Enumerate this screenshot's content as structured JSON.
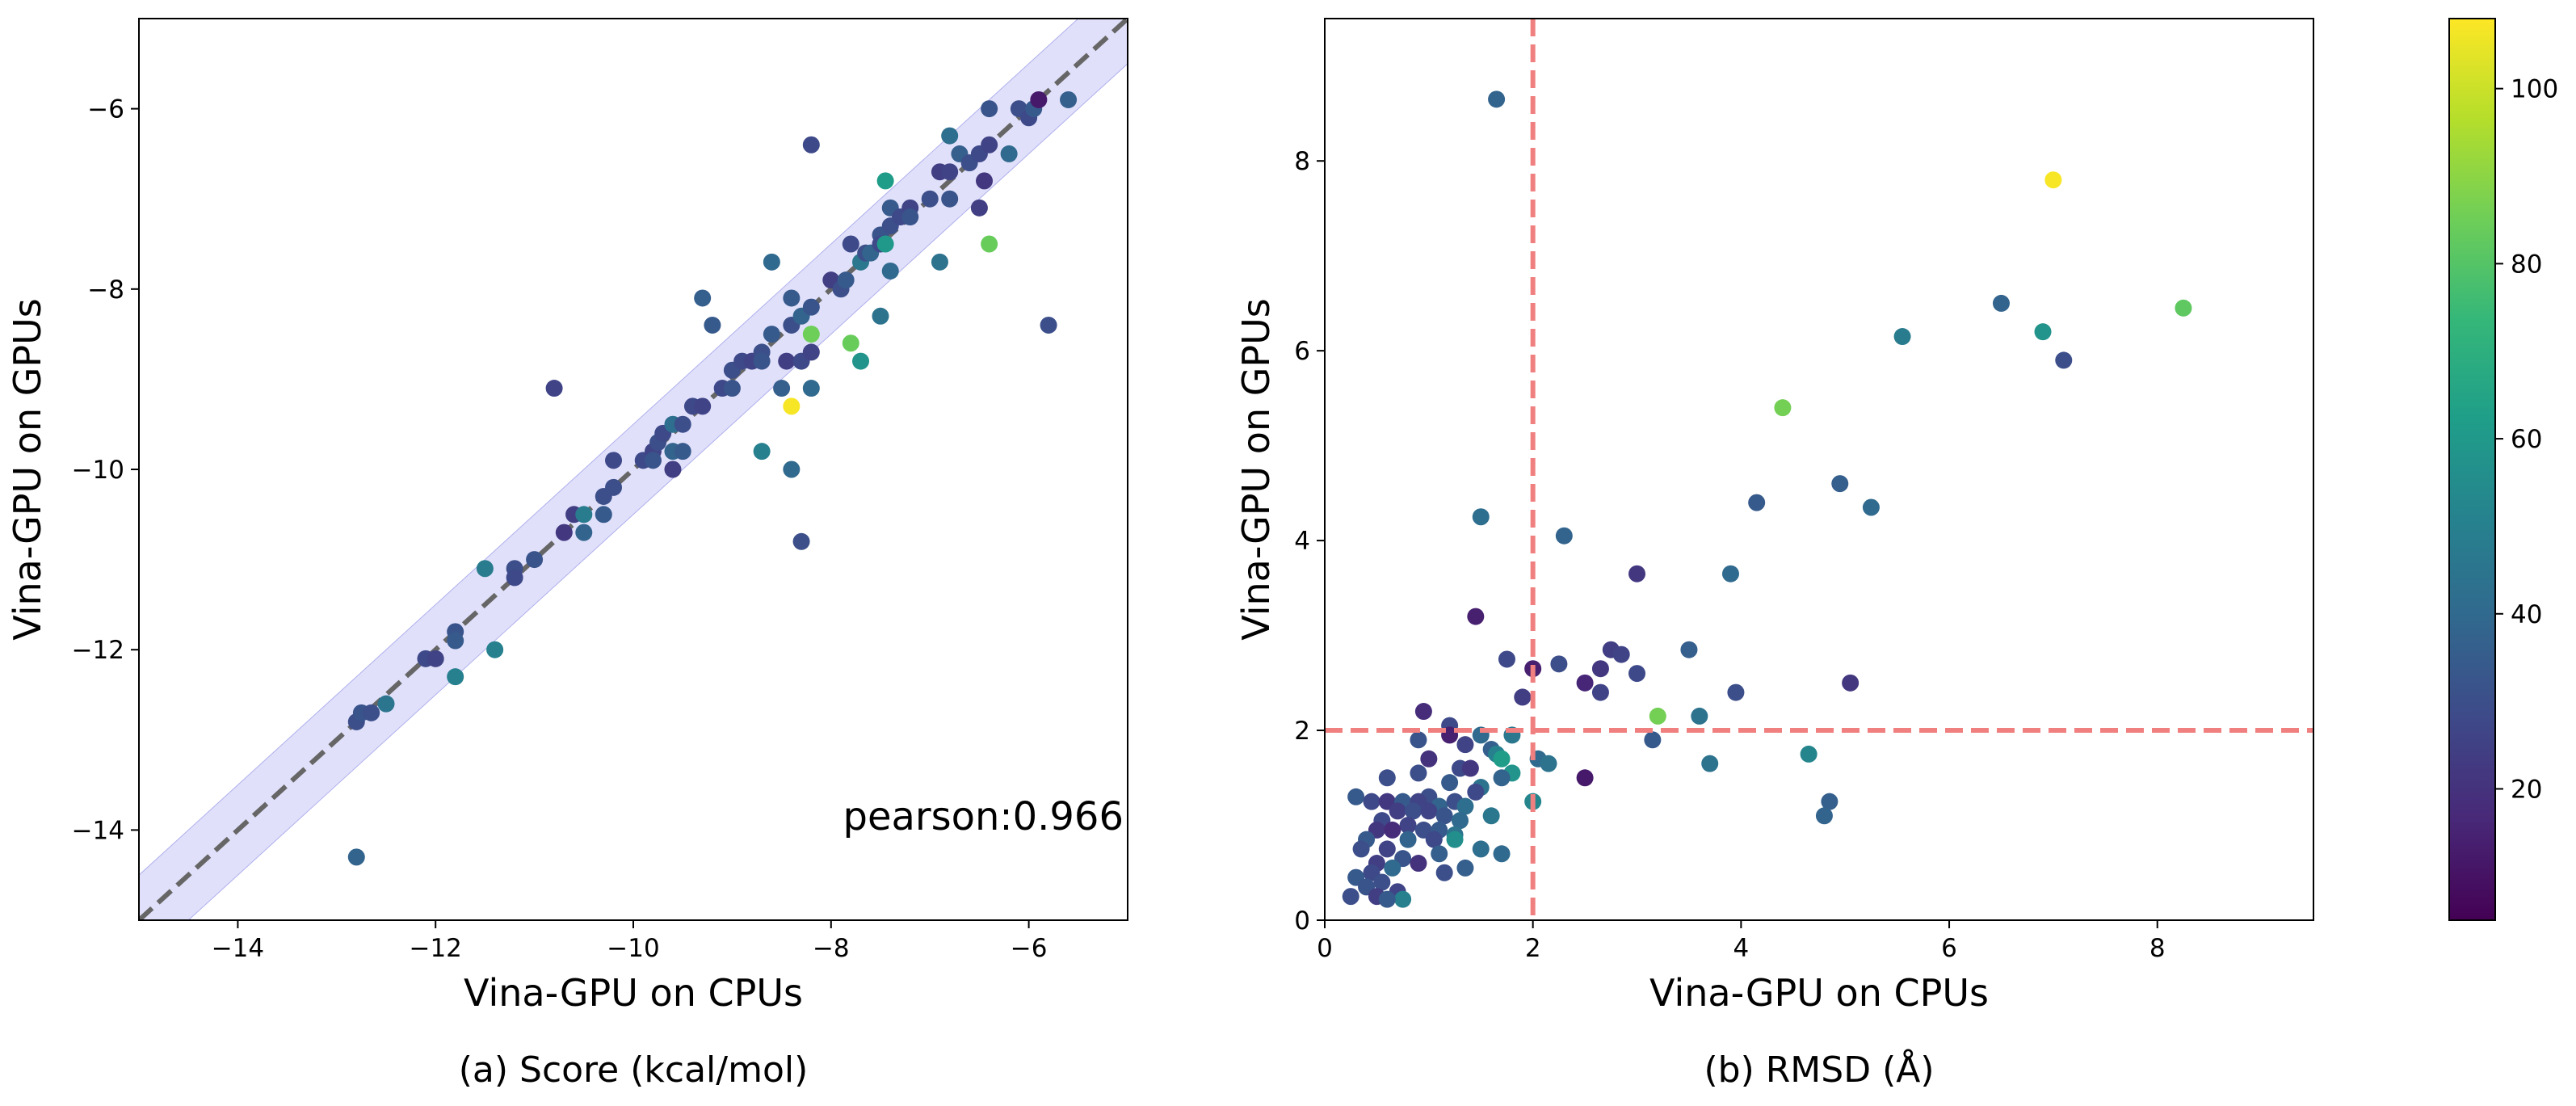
{
  "figure": {
    "caption_a": "(a) Score (kcal/mol)",
    "caption_b": "(b) RMSD (Å)"
  },
  "chart_data": [
    {
      "type": "scatter",
      "panel": "a",
      "title": "",
      "xlabel": "Vina-GPU on CPUs",
      "ylabel": "Vina-GPU on GPUs",
      "xlim": [
        -15,
        -5
      ],
      "ylim": [
        -15,
        -5
      ],
      "xticks": [
        -14,
        -12,
        -10,
        -8,
        -6
      ],
      "yticks": [
        -14,
        -12,
        -10,
        -8,
        -6
      ],
      "xtick_labels": [
        "−14",
        "−12",
        "−10",
        "−8",
        "−6"
      ],
      "ytick_labels": [
        "−14",
        "−12",
        "−10",
        "−8",
        "−6"
      ],
      "annotation": "pearson:0.966",
      "reference_line": {
        "style": "dashed",
        "color": "#666666",
        "slope": 1,
        "intercept": 0
      },
      "band": {
        "color": "#c6c6f5",
        "half_width": 0.5
      },
      "points": [
        {
          "x": -12.8,
          "y": -14.3,
          "c": 38
        },
        {
          "x": -12.8,
          "y": -12.8,
          "c": 30
        },
        {
          "x": -12.75,
          "y": -12.7,
          "c": 32
        },
        {
          "x": -12.65,
          "y": -12.7,
          "c": 30
        },
        {
          "x": -12.5,
          "y": -12.6,
          "c": 45
        },
        {
          "x": -12.1,
          "y": -12.1,
          "c": 28
        },
        {
          "x": -12.0,
          "y": -12.1,
          "c": 26
        },
        {
          "x": -11.8,
          "y": -11.8,
          "c": 32
        },
        {
          "x": -11.8,
          "y": -11.9,
          "c": 34
        },
        {
          "x": -11.8,
          "y": -12.3,
          "c": 50
        },
        {
          "x": -11.5,
          "y": -11.1,
          "c": 48
        },
        {
          "x": -11.4,
          "y": -12.0,
          "c": 50
        },
        {
          "x": -11.2,
          "y": -11.1,
          "c": 30
        },
        {
          "x": -11.2,
          "y": -11.2,
          "c": 28
        },
        {
          "x": -11.0,
          "y": -11.0,
          "c": 32
        },
        {
          "x": -10.8,
          "y": -9.1,
          "c": 26
        },
        {
          "x": -10.7,
          "y": -10.7,
          "c": 22
        },
        {
          "x": -10.6,
          "y": -10.5,
          "c": 24
        },
        {
          "x": -10.5,
          "y": -10.7,
          "c": 38
        },
        {
          "x": -10.5,
          "y": -10.5,
          "c": 48
        },
        {
          "x": -10.3,
          "y": -10.3,
          "c": 30
        },
        {
          "x": -10.3,
          "y": -10.5,
          "c": 34
        },
        {
          "x": -10.2,
          "y": -10.2,
          "c": 30
        },
        {
          "x": -10.2,
          "y": -9.9,
          "c": 28
        },
        {
          "x": -9.9,
          "y": -9.9,
          "c": 28
        },
        {
          "x": -9.8,
          "y": -9.8,
          "c": 26
        },
        {
          "x": -9.8,
          "y": -9.9,
          "c": 32
        },
        {
          "x": -9.75,
          "y": -9.7,
          "c": 30
        },
        {
          "x": -9.7,
          "y": -9.6,
          "c": 28
        },
        {
          "x": -9.6,
          "y": -9.5,
          "c": 42
        },
        {
          "x": -9.6,
          "y": -9.8,
          "c": 38
        },
        {
          "x": -9.6,
          "y": -10.0,
          "c": 24
        },
        {
          "x": -9.5,
          "y": -9.8,
          "c": 34
        },
        {
          "x": -9.5,
          "y": -9.5,
          "c": 30
        },
        {
          "x": -9.4,
          "y": -9.3,
          "c": 28
        },
        {
          "x": -9.3,
          "y": -9.3,
          "c": 26
        },
        {
          "x": -9.3,
          "y": -8.1,
          "c": 36
        },
        {
          "x": -9.2,
          "y": -8.4,
          "c": 34
        },
        {
          "x": -9.1,
          "y": -9.1,
          "c": 28
        },
        {
          "x": -9.0,
          "y": -8.9,
          "c": 30
        },
        {
          "x": -9.0,
          "y": -9.1,
          "c": 32
        },
        {
          "x": -8.9,
          "y": -8.8,
          "c": 28
        },
        {
          "x": -8.8,
          "y": -8.8,
          "c": 26
        },
        {
          "x": -8.7,
          "y": -9.8,
          "c": 50
        },
        {
          "x": -8.7,
          "y": -8.7,
          "c": 30
        },
        {
          "x": -8.7,
          "y": -8.8,
          "c": 32
        },
        {
          "x": -8.6,
          "y": -7.7,
          "c": 40
        },
        {
          "x": -8.6,
          "y": -8.5,
          "c": 34
        },
        {
          "x": -8.5,
          "y": -9.1,
          "c": 36
        },
        {
          "x": -8.45,
          "y": -8.8,
          "c": 24
        },
        {
          "x": -8.4,
          "y": -8.4,
          "c": 30
        },
        {
          "x": -8.4,
          "y": -8.1,
          "c": 34
        },
        {
          "x": -8.4,
          "y": -10.0,
          "c": 40
        },
        {
          "x": -8.4,
          "y": -9.3,
          "c": 107
        },
        {
          "x": -8.3,
          "y": -10.8,
          "c": 30
        },
        {
          "x": -8.3,
          "y": -8.3,
          "c": 38
        },
        {
          "x": -8.3,
          "y": -8.8,
          "c": 28
        },
        {
          "x": -8.2,
          "y": -8.2,
          "c": 32
        },
        {
          "x": -8.2,
          "y": -8.7,
          "c": 26
        },
        {
          "x": -8.2,
          "y": -8.5,
          "c": 85
        },
        {
          "x": -8.2,
          "y": -9.1,
          "c": 40
        },
        {
          "x": -8.2,
          "y": -6.4,
          "c": 28
        },
        {
          "x": -8.0,
          "y": -7.9,
          "c": 24
        },
        {
          "x": -7.9,
          "y": -8.0,
          "c": 30
        },
        {
          "x": -7.85,
          "y": -7.9,
          "c": 34
        },
        {
          "x": -7.8,
          "y": -7.5,
          "c": 28
        },
        {
          "x": -7.8,
          "y": -8.6,
          "c": 84
        },
        {
          "x": -7.7,
          "y": -8.8,
          "c": 58
        },
        {
          "x": -7.7,
          "y": -7.7,
          "c": 46
        },
        {
          "x": -7.65,
          "y": -7.6,
          "c": 30
        },
        {
          "x": -7.6,
          "y": -7.6,
          "c": 38
        },
        {
          "x": -7.5,
          "y": -7.4,
          "c": 32
        },
        {
          "x": -7.5,
          "y": -8.3,
          "c": 44
        },
        {
          "x": -7.5,
          "y": -7.5,
          "c": 28
        },
        {
          "x": -7.45,
          "y": -7.5,
          "c": 60
        },
        {
          "x": -7.45,
          "y": -6.8,
          "c": 62
        },
        {
          "x": -7.4,
          "y": -7.1,
          "c": 34
        },
        {
          "x": -7.4,
          "y": -7.3,
          "c": 30
        },
        {
          "x": -7.4,
          "y": -7.8,
          "c": 40
        },
        {
          "x": -7.3,
          "y": -7.2,
          "c": 28
        },
        {
          "x": -7.2,
          "y": -7.1,
          "c": 26
        },
        {
          "x": -7.2,
          "y": -7.2,
          "c": 32
        },
        {
          "x": -7.0,
          "y": -7.0,
          "c": 30
        },
        {
          "x": -6.9,
          "y": -6.7,
          "c": 24
        },
        {
          "x": -6.9,
          "y": -7.7,
          "c": 44
        },
        {
          "x": -6.8,
          "y": -6.7,
          "c": 26
        },
        {
          "x": -6.8,
          "y": -6.3,
          "c": 42
        },
        {
          "x": -6.8,
          "y": -7.0,
          "c": 32
        },
        {
          "x": -6.7,
          "y": -6.5,
          "c": 36
        },
        {
          "x": -6.6,
          "y": -6.6,
          "c": 30
        },
        {
          "x": -6.5,
          "y": -6.5,
          "c": 28
        },
        {
          "x": -6.5,
          "y": -7.1,
          "c": 24
        },
        {
          "x": -6.45,
          "y": -6.8,
          "c": 22
        },
        {
          "x": -6.4,
          "y": -6.4,
          "c": 26
        },
        {
          "x": -6.4,
          "y": -7.5,
          "c": 84
        },
        {
          "x": -6.4,
          "y": -6.0,
          "c": 32
        },
        {
          "x": -6.2,
          "y": -6.5,
          "c": 40
        },
        {
          "x": -6.1,
          "y": -6.0,
          "c": 30
        },
        {
          "x": -6.0,
          "y": -6.1,
          "c": 28
        },
        {
          "x": -5.95,
          "y": -6.0,
          "c": 34
        },
        {
          "x": -5.9,
          "y": -5.9,
          "c": 12
        },
        {
          "x": -5.8,
          "y": -8.4,
          "c": 30
        },
        {
          "x": -5.6,
          "y": -5.9,
          "c": 36
        }
      ]
    },
    {
      "type": "scatter",
      "panel": "b",
      "title": "",
      "xlabel": "Vina-GPU on CPUs",
      "ylabel": "Vina-GPU on GPUs",
      "xlim": [
        0,
        9.5
      ],
      "ylim": [
        0,
        9.5
      ],
      "xticks": [
        0,
        2,
        4,
        6,
        8
      ],
      "yticks": [
        0,
        2,
        4,
        6,
        8
      ],
      "xtick_labels": [
        "0",
        "2",
        "4",
        "6",
        "8"
      ],
      "ytick_labels": [
        "0",
        "2",
        "4",
        "6",
        "8"
      ],
      "threshold_lines": {
        "x": 2,
        "y": 2,
        "style": "dashed",
        "color": "#f08080"
      },
      "points": [
        {
          "x": 1.65,
          "y": 8.65,
          "c": 38
        },
        {
          "x": 7.0,
          "y": 7.8,
          "c": 107
        },
        {
          "x": 6.5,
          "y": 6.5,
          "c": 38
        },
        {
          "x": 8.25,
          "y": 6.45,
          "c": 82
        },
        {
          "x": 6.9,
          "y": 6.2,
          "c": 58
        },
        {
          "x": 5.55,
          "y": 6.15,
          "c": 48
        },
        {
          "x": 7.1,
          "y": 5.9,
          "c": 30
        },
        {
          "x": 4.4,
          "y": 5.4,
          "c": 86
        },
        {
          "x": 4.95,
          "y": 4.6,
          "c": 36
        },
        {
          "x": 4.15,
          "y": 4.4,
          "c": 34
        },
        {
          "x": 5.25,
          "y": 4.35,
          "c": 40
        },
        {
          "x": 1.5,
          "y": 4.25,
          "c": 42
        },
        {
          "x": 2.3,
          "y": 4.05,
          "c": 38
        },
        {
          "x": 3.0,
          "y": 3.65,
          "c": 22
        },
        {
          "x": 3.9,
          "y": 3.65,
          "c": 40
        },
        {
          "x": 1.45,
          "y": 3.2,
          "c": 14
        },
        {
          "x": 3.5,
          "y": 2.85,
          "c": 36
        },
        {
          "x": 2.75,
          "y": 2.85,
          "c": 24
        },
        {
          "x": 1.75,
          "y": 2.75,
          "c": 28
        },
        {
          "x": 2.85,
          "y": 2.8,
          "c": 26
        },
        {
          "x": 2.0,
          "y": 2.65,
          "c": 14
        },
        {
          "x": 2.65,
          "y": 2.65,
          "c": 22
        },
        {
          "x": 2.25,
          "y": 2.7,
          "c": 30
        },
        {
          "x": 3.0,
          "y": 2.6,
          "c": 28
        },
        {
          "x": 5.05,
          "y": 2.5,
          "c": 22
        },
        {
          "x": 2.5,
          "y": 2.5,
          "c": 16
        },
        {
          "x": 2.65,
          "y": 2.4,
          "c": 26
        },
        {
          "x": 3.95,
          "y": 2.4,
          "c": 30
        },
        {
          "x": 1.9,
          "y": 2.35,
          "c": 24
        },
        {
          "x": 0.95,
          "y": 2.2,
          "c": 18
        },
        {
          "x": 3.6,
          "y": 2.15,
          "c": 44
        },
        {
          "x": 3.2,
          "y": 2.15,
          "c": 86
        },
        {
          "x": 1.2,
          "y": 2.05,
          "c": 28
        },
        {
          "x": 1.2,
          "y": 1.95,
          "c": 14
        },
        {
          "x": 1.5,
          "y": 1.95,
          "c": 40
        },
        {
          "x": 1.8,
          "y": 1.95,
          "c": 46
        },
        {
          "x": 3.15,
          "y": 1.9,
          "c": 34
        },
        {
          "x": 0.9,
          "y": 1.9,
          "c": 32
        },
        {
          "x": 1.35,
          "y": 1.85,
          "c": 26
        },
        {
          "x": 1.6,
          "y": 1.8,
          "c": 36
        },
        {
          "x": 1.65,
          "y": 1.75,
          "c": 50
        },
        {
          "x": 4.65,
          "y": 1.75,
          "c": 52
        },
        {
          "x": 2.05,
          "y": 1.7,
          "c": 40
        },
        {
          "x": 1.7,
          "y": 1.7,
          "c": 62
        },
        {
          "x": 1.0,
          "y": 1.7,
          "c": 20
        },
        {
          "x": 2.15,
          "y": 1.65,
          "c": 44
        },
        {
          "x": 3.7,
          "y": 1.65,
          "c": 44
        },
        {
          "x": 1.3,
          "y": 1.6,
          "c": 28
        },
        {
          "x": 1.4,
          "y": 1.6,
          "c": 22
        },
        {
          "x": 0.9,
          "y": 1.55,
          "c": 30
        },
        {
          "x": 1.8,
          "y": 1.55,
          "c": 58
        },
        {
          "x": 1.7,
          "y": 1.5,
          "c": 38
        },
        {
          "x": 0.6,
          "y": 1.5,
          "c": 30
        },
        {
          "x": 2.5,
          "y": 1.5,
          "c": 12
        },
        {
          "x": 1.2,
          "y": 1.45,
          "c": 34
        },
        {
          "x": 1.5,
          "y": 1.4,
          "c": 44
        },
        {
          "x": 1.45,
          "y": 1.35,
          "c": 28
        },
        {
          "x": 1.0,
          "y": 1.3,
          "c": 30
        },
        {
          "x": 0.3,
          "y": 1.3,
          "c": 34
        },
        {
          "x": 0.45,
          "y": 1.25,
          "c": 28
        },
        {
          "x": 0.6,
          "y": 1.25,
          "c": 22
        },
        {
          "x": 0.75,
          "y": 1.25,
          "c": 34
        },
        {
          "x": 0.9,
          "y": 1.25,
          "c": 26
        },
        {
          "x": 1.1,
          "y": 1.2,
          "c": 38
        },
        {
          "x": 1.25,
          "y": 1.25,
          "c": 30
        },
        {
          "x": 1.35,
          "y": 1.2,
          "c": 42
        },
        {
          "x": 2.0,
          "y": 1.25,
          "c": 52
        },
        {
          "x": 4.85,
          "y": 1.25,
          "c": 36
        },
        {
          "x": 0.7,
          "y": 1.15,
          "c": 24
        },
        {
          "x": 0.85,
          "y": 1.15,
          "c": 30
        },
        {
          "x": 1.0,
          "y": 1.15,
          "c": 26
        },
        {
          "x": 1.15,
          "y": 1.1,
          "c": 32
        },
        {
          "x": 1.6,
          "y": 1.1,
          "c": 46
        },
        {
          "x": 0.55,
          "y": 1.05,
          "c": 28
        },
        {
          "x": 1.3,
          "y": 1.05,
          "c": 40
        },
        {
          "x": 4.8,
          "y": 1.1,
          "c": 38
        },
        {
          "x": 0.8,
          "y": 1.0,
          "c": 26
        },
        {
          "x": 0.95,
          "y": 0.95,
          "c": 30
        },
        {
          "x": 1.1,
          "y": 0.95,
          "c": 34
        },
        {
          "x": 0.5,
          "y": 0.95,
          "c": 22
        },
        {
          "x": 0.65,
          "y": 0.95,
          "c": 18
        },
        {
          "x": 1.25,
          "y": 0.9,
          "c": 44
        },
        {
          "x": 0.4,
          "y": 0.85,
          "c": 34
        },
        {
          "x": 0.8,
          "y": 0.85,
          "c": 38
        },
        {
          "x": 1.05,
          "y": 0.85,
          "c": 28
        },
        {
          "x": 1.25,
          "y": 0.85,
          "c": 56
        },
        {
          "x": 0.35,
          "y": 0.75,
          "c": 30
        },
        {
          "x": 0.6,
          "y": 0.75,
          "c": 26
        },
        {
          "x": 1.5,
          "y": 0.75,
          "c": 42
        },
        {
          "x": 1.1,
          "y": 0.7,
          "c": 36
        },
        {
          "x": 1.7,
          "y": 0.7,
          "c": 40
        },
        {
          "x": 0.75,
          "y": 0.65,
          "c": 32
        },
        {
          "x": 0.5,
          "y": 0.6,
          "c": 24
        },
        {
          "x": 0.9,
          "y": 0.6,
          "c": 20
        },
        {
          "x": 1.35,
          "y": 0.55,
          "c": 36
        },
        {
          "x": 0.65,
          "y": 0.55,
          "c": 40
        },
        {
          "x": 0.45,
          "y": 0.5,
          "c": 28
        },
        {
          "x": 1.15,
          "y": 0.5,
          "c": 30
        },
        {
          "x": 0.3,
          "y": 0.45,
          "c": 34
        },
        {
          "x": 0.55,
          "y": 0.4,
          "c": 30
        },
        {
          "x": 0.4,
          "y": 0.35,
          "c": 32
        },
        {
          "x": 0.7,
          "y": 0.3,
          "c": 26
        },
        {
          "x": 0.25,
          "y": 0.25,
          "c": 30
        },
        {
          "x": 0.5,
          "y": 0.25,
          "c": 24
        },
        {
          "x": 0.75,
          "y": 0.22,
          "c": 50
        },
        {
          "x": 0.6,
          "y": 0.22,
          "c": 34
        }
      ]
    },
    {
      "type": "colorbar",
      "colormap": "viridis",
      "range": [
        5,
        108
      ],
      "ticks": [
        20,
        40,
        60,
        80,
        100
      ],
      "tick_labels": [
        "20",
        "40",
        "60",
        "80",
        "100"
      ],
      "colormap_stops": [
        "#440154",
        "#482878",
        "#3e4989",
        "#31688e",
        "#26828e",
        "#1f9e89",
        "#35b779",
        "#6ece58",
        "#b5de2b",
        "#fde725"
      ]
    }
  ]
}
